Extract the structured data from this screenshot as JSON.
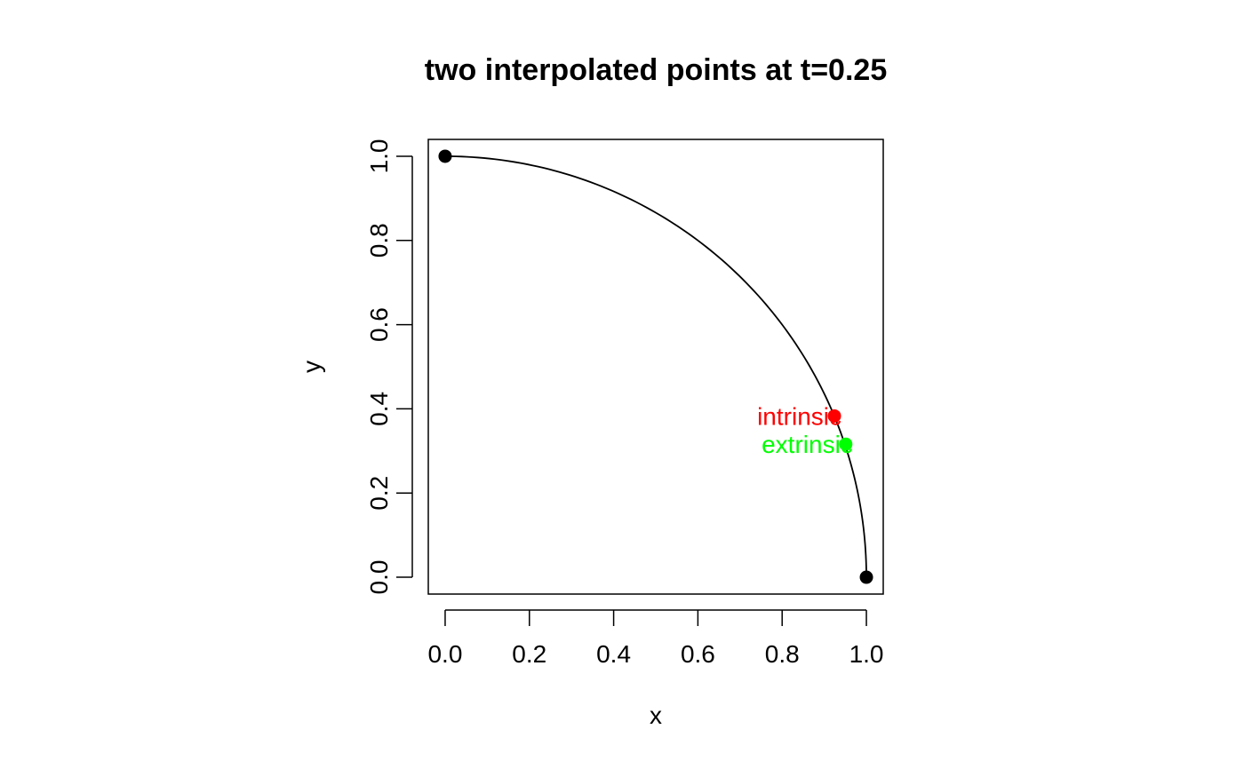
{
  "chart_data": {
    "type": "scatter",
    "title": "two interpolated points at t=0.25",
    "xlabel": "x",
    "ylabel": "y",
    "xlim": [
      -0.04,
      1.04
    ],
    "ylim": [
      -0.04,
      1.04
    ],
    "xticks": [
      0.0,
      0.2,
      0.4,
      0.6,
      0.8,
      1.0
    ],
    "xtick_labels": [
      "0.0",
      "0.2",
      "0.4",
      "0.6",
      "0.8",
      "1.0"
    ],
    "yticks": [
      0.0,
      0.2,
      0.4,
      0.6,
      0.8,
      1.0
    ],
    "ytick_labels": [
      "0.0",
      "0.2",
      "0.4",
      "0.6",
      "0.8",
      "1.0"
    ],
    "grid": false,
    "curve": {
      "type": "quarter-circle",
      "from": [
        0,
        1
      ],
      "to": [
        1,
        0
      ],
      "color": "#000000"
    },
    "endpoints": [
      {
        "x": 0.0,
        "y": 1.0,
        "color": "#000000"
      },
      {
        "x": 1.0,
        "y": 0.0,
        "color": "#000000"
      }
    ],
    "points": [
      {
        "label": "intrinsic",
        "x": 0.924,
        "y": 0.383,
        "color": "#ff0000"
      },
      {
        "label": "extrinsic",
        "x": 0.951,
        "y": 0.316,
        "color": "#00ff00"
      }
    ]
  }
}
